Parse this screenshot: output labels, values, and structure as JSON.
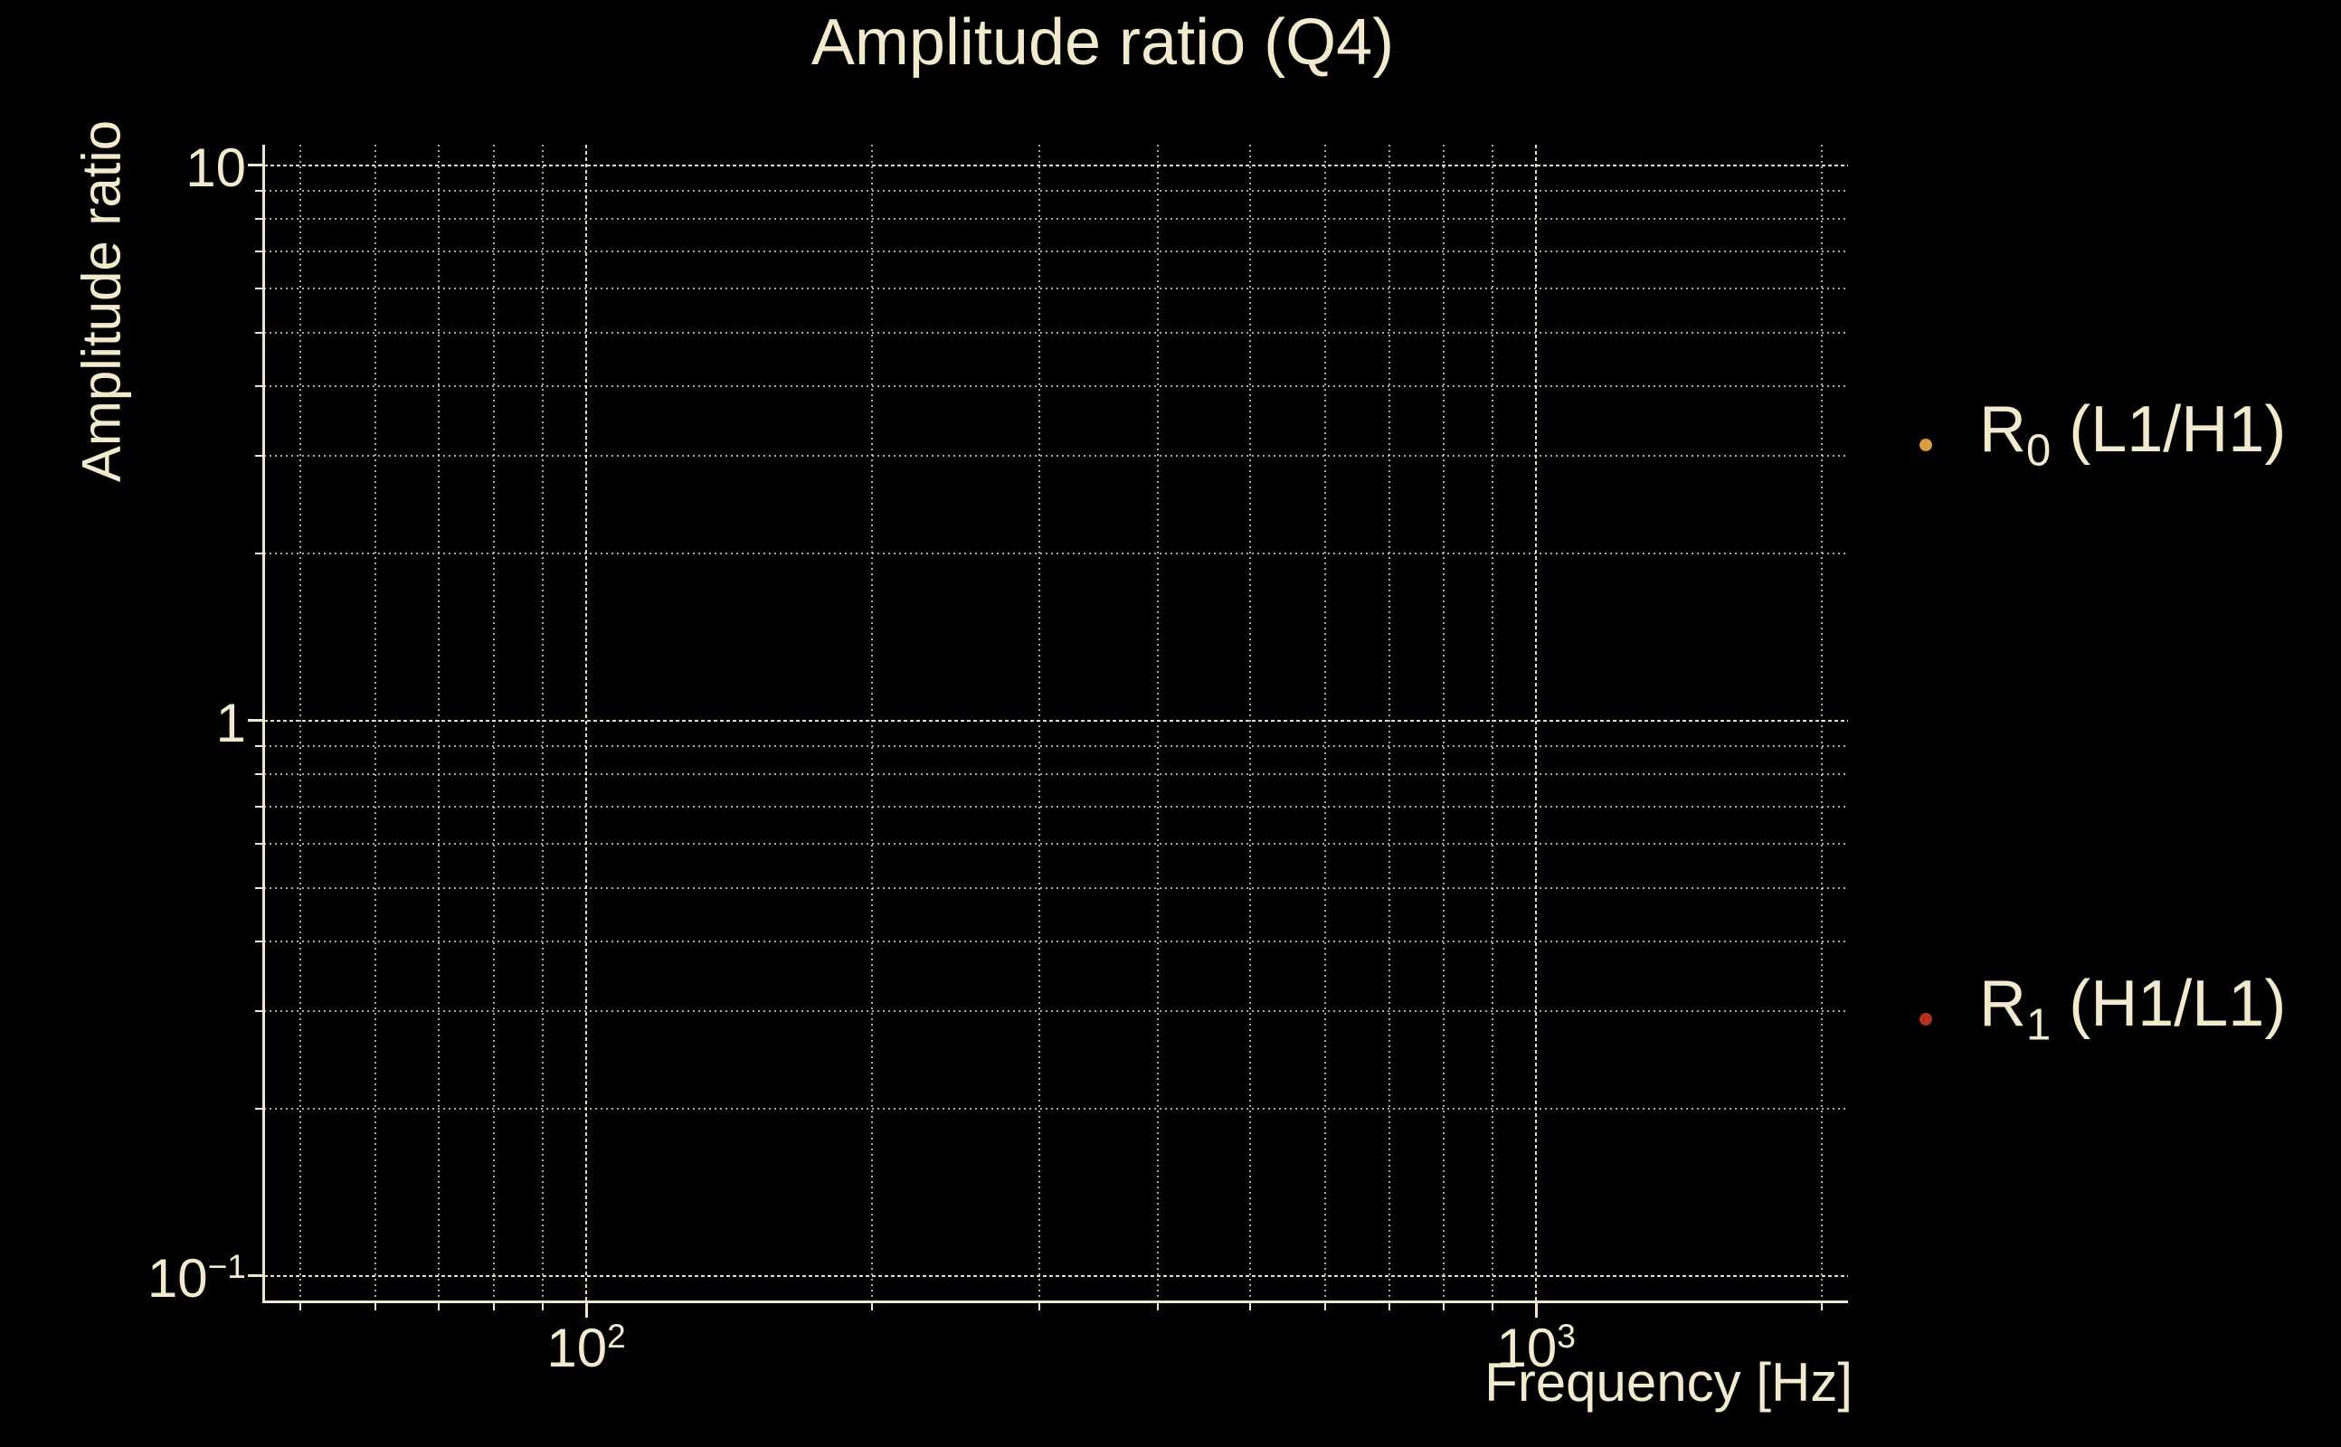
{
  "page": {
    "background": "#000000",
    "text_color": "#f2e9ce",
    "axis_color": "#efe7cd"
  },
  "chart_data": {
    "type": "scatter",
    "title": "Amplitude ratio (Q4)",
    "xlabel": "Frequency [Hz]",
    "ylabel": "Amplitude ratio",
    "xscale": "log",
    "yscale": "log",
    "xlim": [
      45.8,
      2130
    ],
    "ylim": [
      0.09,
      10.9
    ],
    "grid": {
      "show": true,
      "style": "dotted",
      "which": "major-and-minor"
    },
    "legend_position": "outside-right",
    "x_axis": {
      "major_ticks": [
        100,
        1000
      ],
      "major_tick_labels": [
        {
          "base": "10",
          "sup": "2"
        },
        {
          "base": "10",
          "sup": "3"
        }
      ],
      "minor_ticks": [
        50,
        60,
        70,
        80,
        90,
        200,
        300,
        400,
        500,
        600,
        700,
        800,
        900,
        2000
      ]
    },
    "y_axis": {
      "major_ticks": [
        10,
        1,
        0.1
      ],
      "major_tick_labels": [
        {
          "base": "10",
          "sup": ""
        },
        {
          "base": "1",
          "sup": ""
        },
        {
          "base": "10",
          "sup": "−1"
        }
      ],
      "minor_ticks": [
        9,
        8,
        7,
        6,
        5,
        4,
        3,
        2,
        0.9,
        0.8,
        0.7,
        0.6,
        0.5,
        0.4,
        0.3,
        0.2
      ]
    },
    "series": [
      {
        "label": {
          "base": "R",
          "sub": "0",
          "rest": " (L1/H1)"
        },
        "marker": "dot",
        "color": "#d79f3e",
        "points_x": [],
        "points_y": []
      },
      {
        "label": {
          "base": "R",
          "sub": "1",
          "rest": " (H1/L1)"
        },
        "marker": "dot",
        "color": "#b23120",
        "points_x": [],
        "points_y": []
      }
    ]
  }
}
